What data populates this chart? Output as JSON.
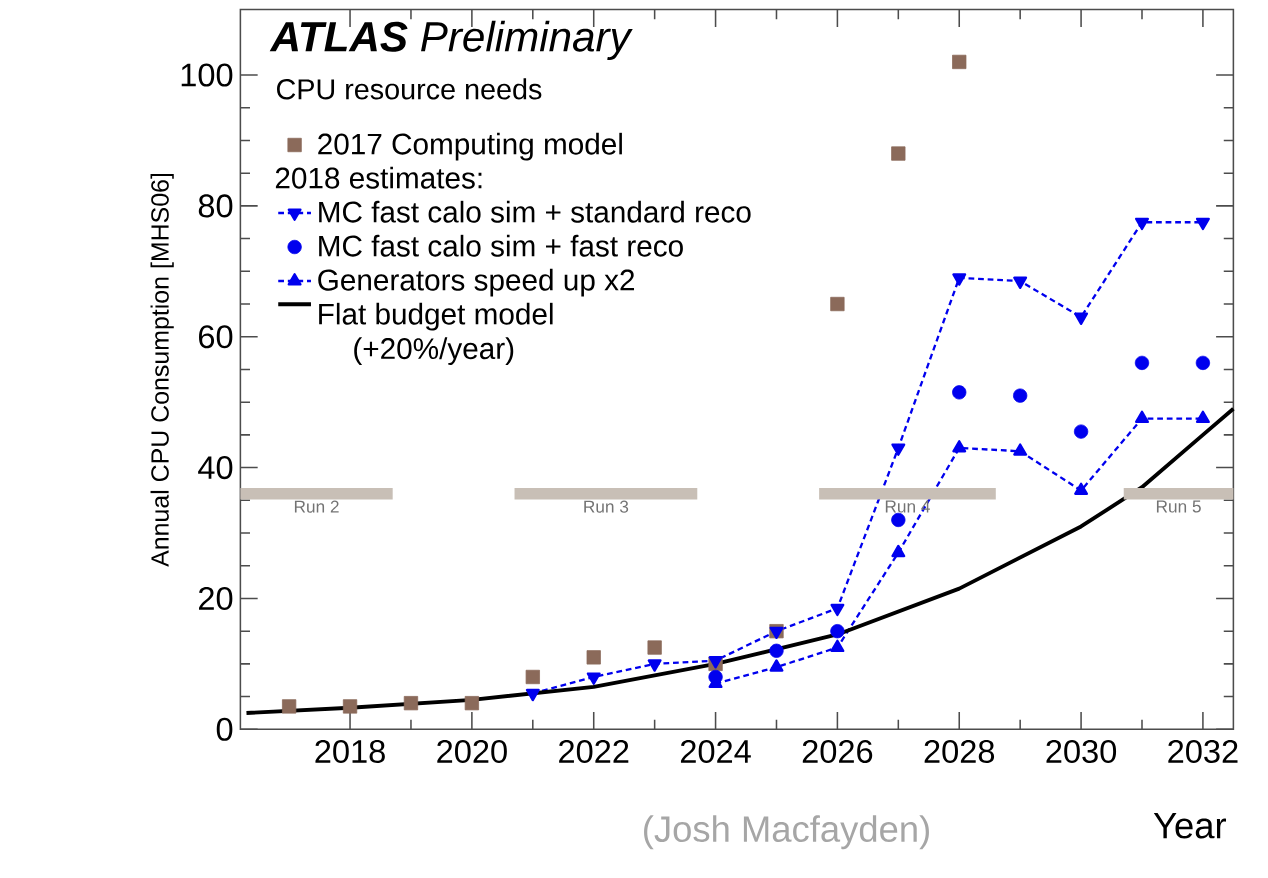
{
  "chart_data": {
    "type": "scatter",
    "title": "**ATLAS** Preliminary",
    "subtitle": "CPU resource needs",
    "legend_title": "2018 estimates:",
    "xlabel": "Year",
    "ylabel": "Annual CPU Consumption [MHS06]",
    "xlim": [
      2016.2,
      2032.5
    ],
    "xticks": [
      2018,
      2020,
      2022,
      2024,
      2026,
      2028,
      2030,
      2032
    ],
    "ylim": [
      0,
      110
    ],
    "yticks": [
      0,
      20,
      40,
      60,
      80,
      100
    ],
    "legend": "top left",
    "series": [
      {
        "name": "2017 Computing model",
        "type": "scatter",
        "marker": "square",
        "color": "#8b6a5a",
        "x": [
          2017,
          2018,
          2019,
          2020,
          2021,
          2022,
          2023,
          2024,
          2025,
          2026,
          2027,
          2028
        ],
        "values": [
          3.5,
          3.5,
          4,
          4,
          8,
          11,
          12.5,
          10,
          15,
          65,
          88,
          102
        ]
      },
      {
        "name": "MC fast calo sim + standard reco",
        "type": "line",
        "line_style": "dotted",
        "marker": "triangle down",
        "color": "#0000ee",
        "x": [
          2021,
          2022,
          2023,
          2024,
          2025,
          2026,
          2027,
          2028,
          2029,
          2030,
          2031,
          2032
        ],
        "values": [
          5.5,
          8,
          10,
          10.5,
          15,
          18.5,
          43,
          69,
          68.5,
          63,
          77.5,
          77.5
        ]
      },
      {
        "name": "MC fast calo sim + fast reco",
        "type": "scatter",
        "marker": "circle",
        "color": "#0000ee",
        "x": [
          2024,
          2025,
          2026,
          2027,
          2028,
          2029,
          2030,
          2031,
          2032
        ],
        "values": [
          8,
          12,
          15,
          32,
          51.5,
          51,
          45.5,
          56,
          56
        ]
      },
      {
        "name": "Generators speed up x2",
        "type": "line",
        "line_style": "dotted",
        "marker": "triangle",
        "color": "#0000ee",
        "x": [
          2024,
          2025,
          2026,
          2027,
          2028,
          2029,
          2030,
          2031,
          2032
        ],
        "values": [
          7,
          9.5,
          12.5,
          27,
          43,
          42.5,
          36.5,
          47.5,
          47.5
        ]
      },
      {
        "name": "Flat budget model (+20%/year)",
        "type": "line",
        "line_style": "solid",
        "marker": "none",
        "color": "#000000",
        "x": [
          2016.3,
          2018,
          2020,
          2022,
          2024,
          2026,
          2028,
          2030,
          2031,
          2032,
          2032.5
        ],
        "values": [
          2.5,
          3.3,
          4.5,
          6.5,
          10,
          14.5,
          21.5,
          31,
          37,
          45,
          49
        ]
      },
      {
        "type": "line",
        "line_style": "solid",
        "marker": "none",
        "color": "#c8bfb6",
        "x": [
          2016.2,
          2018.7
        ],
        "values": [
          36,
          36
        ]
      },
      {
        "type": "line",
        "line_style": "solid",
        "marker": "none",
        "color": "#c8bfb6",
        "x": [
          2020.7,
          2023.7
        ],
        "values": [
          36,
          36
        ]
      },
      {
        "type": "line",
        "line_style": "solid",
        "marker": "none",
        "color": "#c8bfb6",
        "x": [
          2025.7,
          2028.6
        ],
        "values": [
          36,
          36
        ]
      },
      {
        "type": "line",
        "line_style": "solid",
        "marker": "none",
        "color": "#c8bfb6",
        "x": [
          2030.7,
          2032.5
        ],
        "values": [
          36,
          36
        ]
      }
    ],
    "annotations": [
      "Run 2",
      "Run 3",
      "Run 4",
      "Run 5",
      "(Josh Macfayden)"
    ]
  }
}
